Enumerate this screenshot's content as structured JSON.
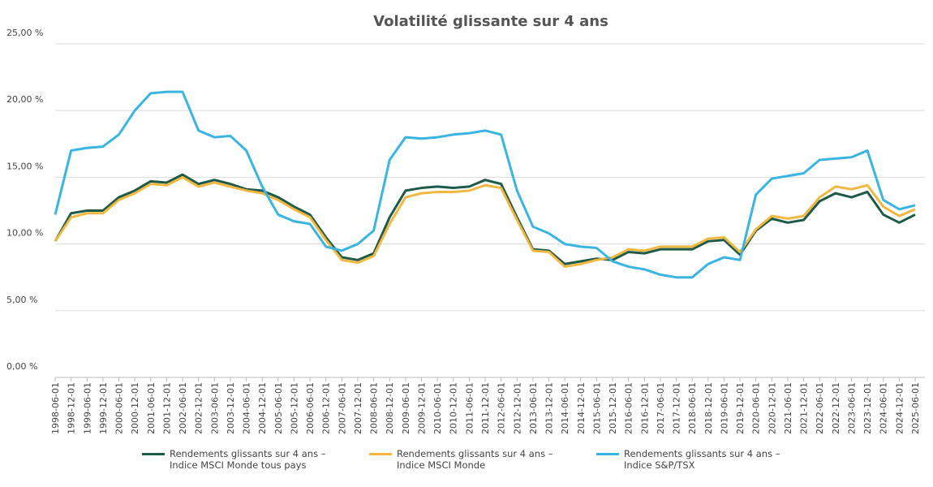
{
  "chart_data": {
    "type": "line",
    "title": "Volatilité glissante sur 4 ans",
    "categories": [
      "1998-06-01",
      "1998-12-01",
      "1999-06-01",
      "1999-12-01",
      "2000-06-01",
      "2000-12-01",
      "2001-06-01",
      "2001-12-01",
      "2002-06-01",
      "2002-12-01",
      "2003-06-01",
      "2003-12-01",
      "2004-06-01",
      "2004-12-01",
      "2005-06-01",
      "2005-12-01",
      "2006-06-01",
      "2006-12-01",
      "2007-06-01",
      "2007-12-01",
      "2008-06-01",
      "2008-12-01",
      "2009-06-01",
      "2009-12-01",
      "2010-06-01",
      "2010-12-01",
      "2011-06-01",
      "2011-12-01",
      "2012-06-01",
      "2012-12-01",
      "2013-06-01",
      "2013-12-01",
      "2014-06-01",
      "2014-12-01",
      "2015-06-01",
      "2015-12-01",
      "2016-06-01",
      "2016-12-01",
      "2017-06-01",
      "2017-12-01",
      "2018-06-01",
      "2018-12-01",
      "2019-06-01",
      "2019-12-01",
      "2020-06-01",
      "2020-12-01",
      "2021-06-01",
      "2021-12-01",
      "2022-06-01",
      "2022-12-01",
      "2023-06-01",
      "2023-12-01",
      "2024-06-01",
      "2024-12-01",
      "2025-06-01"
    ],
    "series": [
      {
        "name": "Rendements glissants sur 4 ans – Indice MSCI Monde tous pays",
        "color": "#1e5a4a",
        "values": [
          10.2,
          12.3,
          12.5,
          12.5,
          13.5,
          14.0,
          14.7,
          14.6,
          15.2,
          14.5,
          14.8,
          14.5,
          14.1,
          14.0,
          13.5,
          12.8,
          12.2,
          10.5,
          9.0,
          8.8,
          9.3,
          12.0,
          14.0,
          14.2,
          14.3,
          14.2,
          14.3,
          14.8,
          14.5,
          12.0,
          9.6,
          9.5,
          8.5,
          8.7,
          8.9,
          8.8,
          9.4,
          9.3,
          9.6,
          9.6,
          9.6,
          10.2,
          10.3,
          9.2,
          11.0,
          11.9,
          11.6,
          11.8,
          13.2,
          13.8,
          13.5,
          13.9,
          12.2,
          11.6,
          12.2
        ]
      },
      {
        "name": "Rendements glissants sur 4 ans – Indice MSCI Monde",
        "color": "#f0b840",
        "values": [
          10.2,
          12.0,
          12.3,
          12.3,
          13.3,
          13.8,
          14.5,
          14.4,
          15.0,
          14.3,
          14.6,
          14.3,
          14.0,
          13.8,
          13.3,
          12.6,
          12.0,
          10.3,
          8.8,
          8.6,
          9.1,
          11.5,
          13.5,
          13.8,
          13.9,
          13.9,
          14.0,
          14.4,
          14.2,
          11.8,
          9.5,
          9.4,
          8.3,
          8.5,
          8.8,
          9.0,
          9.6,
          9.5,
          9.8,
          9.8,
          9.8,
          10.4,
          10.5,
          9.4,
          11.1,
          12.1,
          11.9,
          12.1,
          13.5,
          14.3,
          14.1,
          14.4,
          12.8,
          12.1,
          12.6
        ]
      },
      {
        "name": "Rendements glissants sur 4 ans – Indice S&P/TSX",
        "color": "#3ab4e0",
        "values": [
          12.2,
          17.0,
          17.2,
          17.3,
          18.2,
          20.0,
          21.3,
          21.4,
          21.4,
          18.5,
          18.0,
          18.1,
          17.0,
          14.3,
          12.2,
          11.7,
          11.5,
          9.8,
          9.5,
          10.0,
          11.0,
          16.3,
          18.0,
          17.9,
          18.0,
          18.2,
          18.3,
          18.5,
          18.2,
          14.0,
          11.3,
          10.8,
          10.0,
          9.8,
          9.7,
          8.7,
          8.3,
          8.1,
          7.7,
          7.5,
          7.5,
          8.5,
          9.0,
          8.8,
          13.7,
          14.9,
          15.1,
          15.3,
          16.3,
          16.4,
          16.5,
          17.0,
          13.3,
          12.6,
          12.9
        ]
      }
    ],
    "ylim": [
      0,
      25
    ],
    "yticks": [
      {
        "value": 0,
        "label": "0,00 %"
      },
      {
        "value": 5,
        "label": "5,00 %"
      },
      {
        "value": 10,
        "label": "10,00 %"
      },
      {
        "value": 15,
        "label": "15,00 %"
      },
      {
        "value": 20,
        "label": "20,00 %"
      },
      {
        "value": 25,
        "label": "25,00 %"
      }
    ],
    "grid": true
  }
}
